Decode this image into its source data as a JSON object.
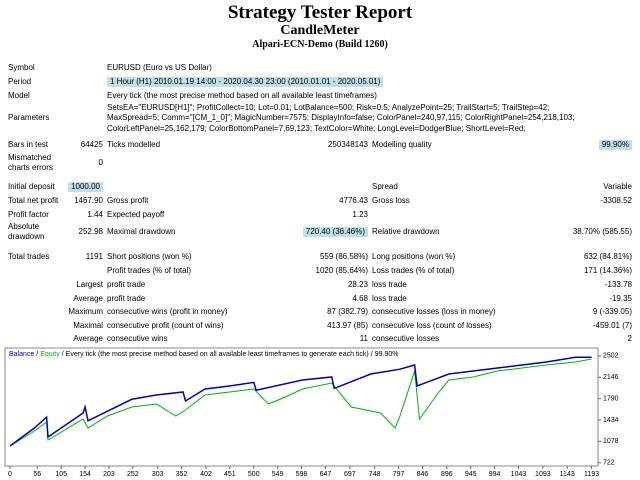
{
  "header": {
    "title": "Strategy Tester Report",
    "expert": "CandleMeter",
    "server": "Alpari-ECN-Demo (Build 1260)"
  },
  "rows": [
    [
      "Symbol",
      null,
      "EURUSD (Euro vs US Dollar)",
      null,
      null,
      null
    ],
    [
      "Period",
      null,
      "1 Hour (H1) 2010.01.19 14:00 - 2020.04.30 23:00 (2010.01.01 - 2020.05.01)",
      null,
      null,
      null
    ],
    [
      "Model",
      null,
      "Every tick (the most precise method based on all available least timeframes)",
      null,
      null,
      null
    ],
    [
      "Parameters",
      null,
      [
        "SetsEA=\"EURUSD[H1]\"; ProfitCollect=10; Lot=0.01; LotBalance=500; Risk=0.5; AnalyzePoint=25; TrailStart=5; TrailStep=42;",
        "MaxSpread=5; Comm=\"[CM_1_0]\"; MagicNumber=7575; DisplayInfo=false; ColorPanel=240,97,115; ColorRightPanel=254,218,103;",
        "ColorLeftPanel=25,162,179; ColorBottomPanel=7,69,123; TextColor=White; LongLevel=DodgerBlue; ShortLevel=Red;"
      ],
      null,
      null,
      null
    ],
    [
      "Bars in test",
      "64425",
      "Ticks modelled",
      "250348143",
      "Modelling quality",
      "99.90%"
    ],
    [
      [
        "Mismatched",
        "charts errors"
      ],
      "0",
      null,
      null,
      null,
      null
    ],
    [
      "Initial deposit",
      "1000.00",
      null,
      null,
      "Spread",
      "Variable"
    ],
    [
      "Total net profit",
      "1467.90",
      "Gross profit",
      "4776.43",
      "Gross loss",
      "-3308.52"
    ],
    [
      "Profit factor",
      "1.44",
      "Expected payoff",
      "1.23",
      null,
      null
    ],
    [
      [
        "Absolute",
        "drawdown"
      ],
      "252.98",
      "Maximal drawdown",
      "720.40 (36.46%)",
      "Relative drawdown",
      "38.70% (585.55)"
    ],
    [
      "Total trades",
      "1191",
      "Short positions (won %)",
      "559 (86.58%)",
      "Long positions (won %)",
      "632 (84.81%)"
    ],
    [
      null,
      null,
      "Profit trades (% of total)",
      "1020 (85.64%)",
      "Loss trades (% of total)",
      "171 (14.36%)"
    ],
    [
      null,
      "Largest",
      "profit trade",
      "28.23",
      "loss trade",
      "-133.78"
    ],
    [
      null,
      "Average",
      "profit trade",
      "4.68",
      "loss trade",
      "-19.35"
    ],
    [
      null,
      "Maximum",
      "consecutive wins (profit in money)",
      "87 (382.79)",
      "consecutive losses (loss in money)",
      "9 (-339.05)"
    ],
    [
      null,
      "Maximal",
      "consecutive profit (count of wins)",
      "413.97 (85)",
      "consecutive loss (count of losses)",
      "-459.01 (7)"
    ],
    [
      null,
      "Average",
      "consecutive wins",
      "11",
      "consecutive losses",
      "2"
    ]
  ],
  "chart_data": {
    "type": "line",
    "legend_text": "Every tick (the most precise method based on all available least timeframes to generate each tick)",
    "quality": "99.90%",
    "separator": "/",
    "xlim": [
      0,
      1200
    ],
    "ylim": [
      700,
      2600
    ],
    "xticks": [
      0,
      56,
      105,
      154,
      203,
      252,
      303,
      352,
      402,
      451,
      500,
      549,
      598,
      647,
      697,
      748,
      797,
      846,
      896,
      945,
      994,
      1043,
      1093,
      1143,
      1193
    ],
    "yticks": [
      2502,
      2146,
      1790,
      1434,
      1078,
      722
    ],
    "series": [
      {
        "name": "Balance",
        "color": "#0000b4",
        "x": [
          0,
          50,
          75,
          78,
          150,
          154,
          160,
          250,
          300,
          355,
          360,
          400,
          450,
          500,
          505,
          600,
          660,
          665,
          740,
          800,
          830,
          835,
          900,
          950,
          1000,
          1100,
          1160,
          1193
        ],
        "values": [
          1000,
          1300,
          1480,
          1150,
          1550,
          1650,
          1420,
          1780,
          1850,
          1900,
          1750,
          1950,
          2000,
          2060,
          1930,
          2100,
          2150,
          1960,
          2200,
          2280,
          2350,
          2000,
          2200,
          2250,
          2300,
          2400,
          2480,
          2480
        ]
      },
      {
        "name": "Equity",
        "color": "#00b400",
        "x": [
          0,
          50,
          75,
          78,
          150,
          160,
          200,
          250,
          300,
          340,
          360,
          400,
          450,
          500,
          530,
          560,
          600,
          660,
          700,
          760,
          790,
          800,
          830,
          840,
          880,
          900,
          950,
          1000,
          1100,
          1160,
          1193
        ],
        "values": [
          1000,
          1250,
          1400,
          1100,
          1450,
          1300,
          1500,
          1650,
          1700,
          1500,
          1600,
          1850,
          1900,
          1950,
          1700,
          1800,
          1950,
          2050,
          1650,
          1550,
          1300,
          1500,
          2250,
          1450,
          1900,
          2100,
          2150,
          2250,
          2350,
          2400,
          2450
        ]
      }
    ]
  }
}
